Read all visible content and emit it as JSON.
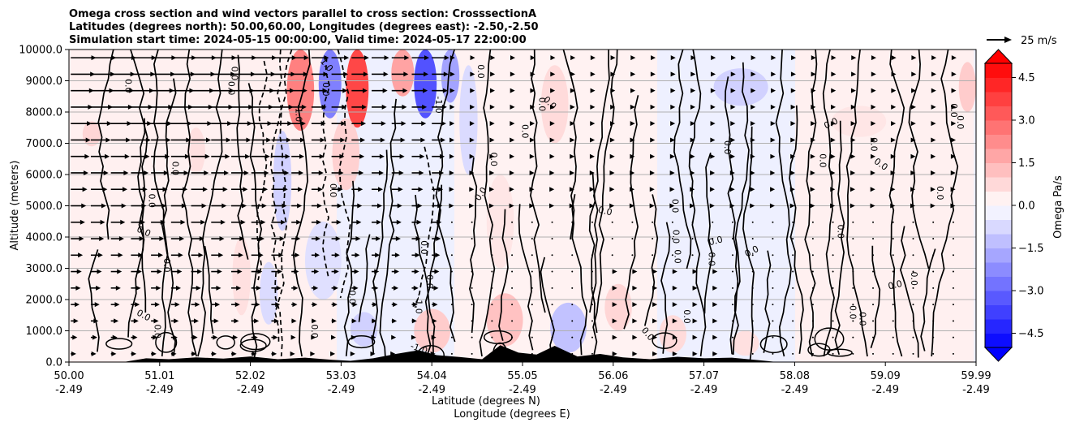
{
  "chart_data": {
    "type": "heatmap",
    "title_lines": [
      "Omega cross section and wind vectors parallel to cross section: CrosssectionA",
      "Latitudes (degrees north): 50.00,60.00, Longitudes (degrees east): -2.50,-2.50",
      "Simulation start time: 2024-05-15 00:00:00, Valid time: 2024-05-17 22:00:00"
    ],
    "ylabel": "Altitude (meters)",
    "xlabel_lines": [
      "Latitude (degrees N)",
      "Longitude (degrees E)"
    ],
    "ylim": [
      0,
      10000
    ],
    "y_ticks": [
      "0.0",
      "1000.0",
      "2000.0",
      "3000.0",
      "4000.0",
      "5000.0",
      "6000.0",
      "7000.0",
      "8000.0",
      "9000.0",
      "10000.0"
    ],
    "x_ticks": [
      {
        "lat": "50.00",
        "lon": "-2.49"
      },
      {
        "lat": "51.01",
        "lon": "-2.49"
      },
      {
        "lat": "52.02",
        "lon": "-2.49"
      },
      {
        "lat": "53.03",
        "lon": "-2.49"
      },
      {
        "lat": "54.04",
        "lon": "-2.49"
      },
      {
        "lat": "55.05",
        "lon": "-2.49"
      },
      {
        "lat": "56.06",
        "lon": "-2.49"
      },
      {
        "lat": "57.07",
        "lon": "-2.49"
      },
      {
        "lat": "58.08",
        "lon": "-2.49"
      },
      {
        "lat": "59.09",
        "lon": "-2.49"
      },
      {
        "lat": "59.99",
        "lon": "-2.49"
      }
    ],
    "grid": true,
    "colorbar": {
      "label": "Omega Pa/s",
      "range": [
        -5,
        5
      ],
      "ticks": [
        "4.5",
        "3.0",
        "1.5",
        "0.0",
        "−1.5",
        "−3.0",
        "−4.5"
      ],
      "positive_color": "#ff0000",
      "negative_color": "#0000ff",
      "extend": "both"
    },
    "quiver_key": {
      "label": "25 m/s",
      "speed_ms": 25
    },
    "contour_label_values": [
      "0.0",
      "1.0",
      "-1.0"
    ],
    "omega_cells": [
      {
        "lat": [
          52.4,
          52.7
        ],
        "alt": [
          7400,
          10000
        ],
        "omega": 2.5
      },
      {
        "lat": [
          52.75,
          53.0
        ],
        "alt": [
          7800,
          10000
        ],
        "omega": -2.5
      },
      {
        "lat": [
          53.05,
          53.3
        ],
        "alt": [
          7500,
          10000
        ],
        "omega": 3.6
      },
      {
        "lat": [
          53.55,
          53.8
        ],
        "alt": [
          8500,
          10000
        ],
        "omega": 1.8
      },
      {
        "lat": [
          53.8,
          54.05
        ],
        "alt": [
          7800,
          10000
        ],
        "omega": -3.4
      },
      {
        "lat": [
          54.1,
          54.3
        ],
        "alt": [
          8300,
          10000
        ],
        "omega": -1.8
      },
      {
        "lat": [
          52.25,
          52.45
        ],
        "alt": [
          4200,
          7400
        ],
        "omega": -0.9
      },
      {
        "lat": [
          54.3,
          54.5
        ],
        "alt": [
          6000,
          9500
        ],
        "omega": -0.7
      },
      {
        "lat": [
          52.9,
          53.2
        ],
        "alt": [
          5500,
          7800
        ],
        "omega": 0.9
      },
      {
        "lat": [
          55.2,
          55.5
        ],
        "alt": [
          7000,
          9500
        ],
        "omega": 0.7
      },
      {
        "lat": [
          57.1,
          57.7
        ],
        "alt": [
          8200,
          9400
        ],
        "omega": -0.9
      },
      {
        "lat": [
          59.8,
          59.99
        ],
        "alt": [
          8000,
          9600
        ],
        "omega": 1.0
      },
      {
        "lat": [
          50.15,
          50.35
        ],
        "alt": [
          6900,
          7700
        ],
        "omega": 0.8
      },
      {
        "lat": [
          51.3,
          51.5
        ],
        "alt": [
          6000,
          7500
        ],
        "omega": 0.6
      },
      {
        "lat": [
          53.8,
          54.2
        ],
        "alt": [
          300,
          1700
        ],
        "omega": 1.0
      },
      {
        "lat": [
          54.6,
          55.0
        ],
        "alt": [
          500,
          2200
        ],
        "omega": 1.2
      },
      {
        "lat": [
          55.3,
          55.7
        ],
        "alt": [
          300,
          1900
        ],
        "omega": -1.2
      },
      {
        "lat": [
          53.1,
          53.4
        ],
        "alt": [
          500,
          1600
        ],
        "omega": -0.9
      },
      {
        "lat": [
          55.9,
          56.2
        ],
        "alt": [
          1000,
          2500
        ],
        "omega": 0.8
      },
      {
        "lat": [
          56.5,
          56.8
        ],
        "alt": [
          300,
          1500
        ],
        "omega": 0.7
      },
      {
        "lat": [
          57.3,
          57.6
        ],
        "alt": [
          200,
          1000
        ],
        "omega": 0.6
      },
      {
        "lat": [
          51.8,
          52.0
        ],
        "alt": [
          1500,
          4000
        ],
        "omega": 0.6
      },
      {
        "lat": [
          52.1,
          52.3
        ],
        "alt": [
          1200,
          3200
        ],
        "omega": -0.7
      },
      {
        "lat": [
          52.6,
          53.0
        ],
        "alt": [
          2000,
          4500
        ],
        "omega": -0.6
      },
      {
        "lat": [
          54.6,
          54.9
        ],
        "alt": [
          3000,
          6000
        ],
        "omega": 0.5
      },
      {
        "lat": [
          58.4,
          59.0
        ],
        "alt": [
          7200,
          8200
        ],
        "omega": 0.5
      }
    ],
    "topography": [
      {
        "lat": 50.0,
        "alt": 0
      },
      {
        "lat": 50.6,
        "alt": 0
      },
      {
        "lat": 50.85,
        "alt": 120
      },
      {
        "lat": 51.1,
        "alt": 90
      },
      {
        "lat": 51.4,
        "alt": 150
      },
      {
        "lat": 51.7,
        "alt": 110
      },
      {
        "lat": 52.0,
        "alt": 180
      },
      {
        "lat": 52.3,
        "alt": 90
      },
      {
        "lat": 52.6,
        "alt": 140
      },
      {
        "lat": 52.9,
        "alt": 70
      },
      {
        "lat": 53.1,
        "alt": 40
      },
      {
        "lat": 53.35,
        "alt": 120
      },
      {
        "lat": 53.6,
        "alt": 260
      },
      {
        "lat": 53.85,
        "alt": 380
      },
      {
        "lat": 54.05,
        "alt": 220
      },
      {
        "lat": 54.3,
        "alt": 160
      },
      {
        "lat": 54.55,
        "alt": 90
      },
      {
        "lat": 54.75,
        "alt": 540
      },
      {
        "lat": 54.95,
        "alt": 300
      },
      {
        "lat": 55.15,
        "alt": 240
      },
      {
        "lat": 55.35,
        "alt": 520
      },
      {
        "lat": 55.6,
        "alt": 180
      },
      {
        "lat": 55.85,
        "alt": 260
      },
      {
        "lat": 56.1,
        "alt": 150
      },
      {
        "lat": 56.4,
        "alt": 90
      },
      {
        "lat": 56.7,
        "alt": 170
      },
      {
        "lat": 57.0,
        "alt": 120
      },
      {
        "lat": 57.3,
        "alt": 140
      },
      {
        "lat": 57.6,
        "alt": 60
      },
      {
        "lat": 57.8,
        "alt": 0
      },
      {
        "lat": 59.99,
        "alt": 0
      }
    ]
  }
}
